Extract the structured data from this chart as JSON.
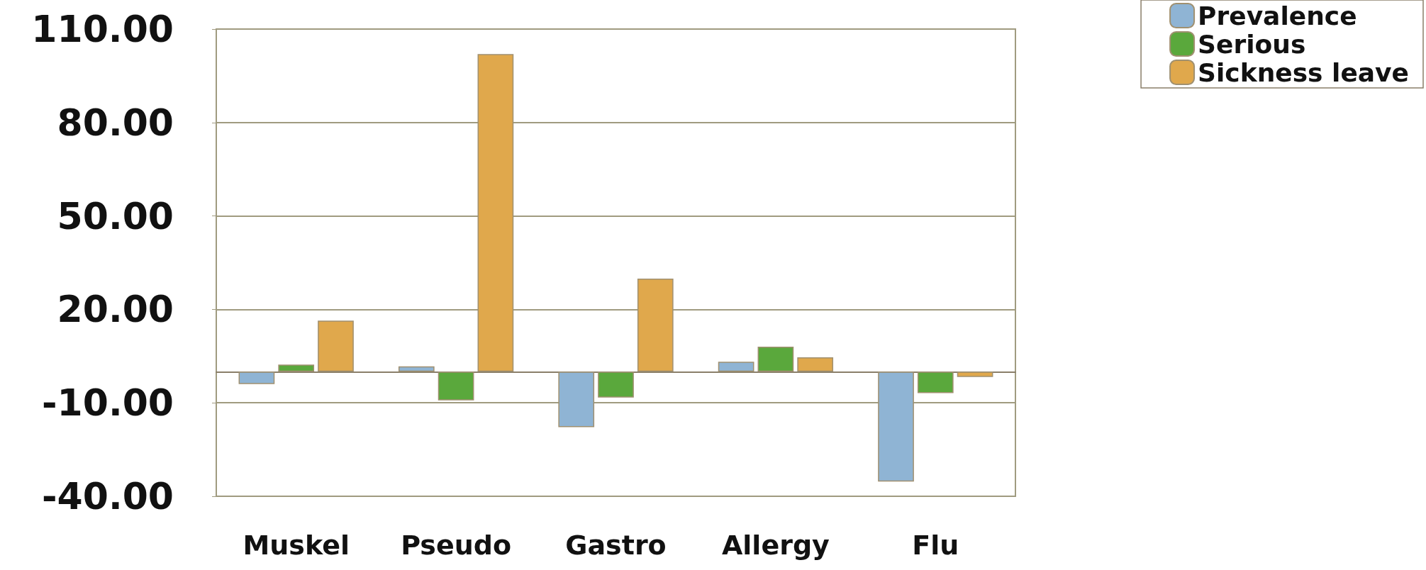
{
  "chart_data": {
    "type": "bar",
    "categories": [
      "Muskel",
      "Pseudo",
      "Gastro",
      "Allergy",
      "Flu"
    ],
    "series": [
      {
        "name": "Prevalence",
        "color": "#8fb4d4",
        "values": [
          -4,
          1.7,
          -17.8,
          3.2,
          -35.3
        ]
      },
      {
        "name": "Serious",
        "color": "#5aa83c",
        "values": [
          2.3,
          -9.2,
          -8.3,
          8,
          -6.9
        ]
      },
      {
        "name": "Sickness leave",
        "color": "#e0a84c",
        "values": [
          16.4,
          102,
          29.9,
          4.6,
          -1.7
        ]
      }
    ],
    "ylim": [
      -40,
      110
    ],
    "yticks": [
      {
        "value": -40,
        "label": "-40.00"
      },
      {
        "value": -10,
        "label": "-10.00"
      },
      {
        "value": 20,
        "label": "20.00"
      },
      {
        "value": 50,
        "label": "50.00"
      },
      {
        "value": 80,
        "label": "80.00"
      },
      {
        "value": 110,
        "label": "110.00"
      }
    ],
    "grid": "y",
    "legend": "top right"
  }
}
